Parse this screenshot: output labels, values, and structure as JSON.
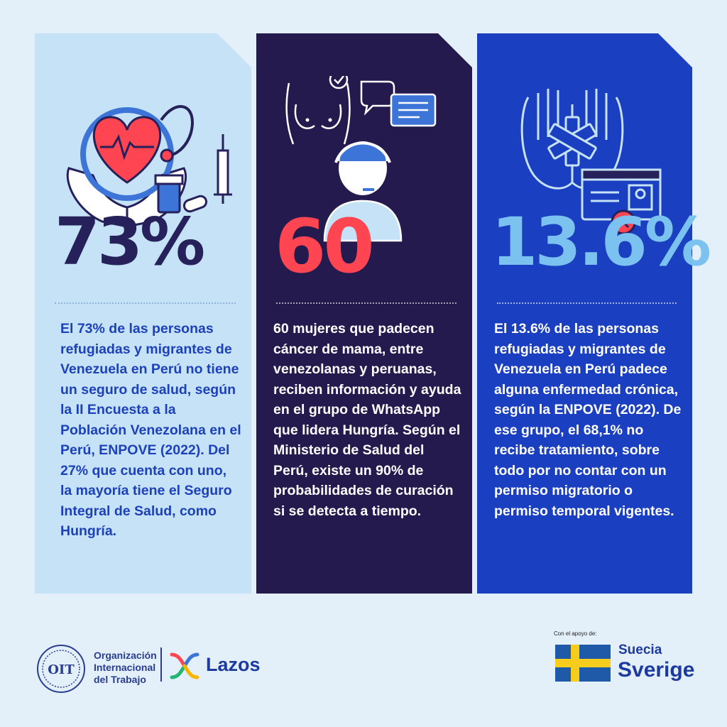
{
  "cards": [
    {
      "stat": "73%",
      "text": "El 73% de las personas refugiadas y migrantes de Venezuela en Perú no tiene un seguro de salud, según la II Encuesta a la Población Venezolana en el Perú, ENPOVE (2022). Del 27% que cuenta con uno, la mayoría tiene el Seguro Integral de Salud, como Hungría.",
      "icon": "heart-stethoscope-hands-icon"
    },
    {
      "stat": "60",
      "text": "60 mujeres que padecen cáncer de mama, entre venezolanas y peruanas, reciben información y ayuda en el grupo de WhatsApp que lidera Hungría. Según el Ministerio de Salud del Perú, existe un 90% de probabilidades de curación si se detecta a tiempo.",
      "icon": "breast-exam-support-agent-icon"
    },
    {
      "stat": "13.6%",
      "text": "El 13.6% de las personas refugiadas y migrantes de Venezuela en Perú padece alguna enfermedad crónica, según la ENPOVE (2022). De ese grupo, el 68,1% no recibe tratamiento, sobre todo por no contar con un permiso migratorio o permiso temporal vigentes.",
      "icon": "medical-hands-id-card-icon"
    }
  ],
  "footer": {
    "oit_lines": [
      "Organización",
      "Internacional",
      "del Trabajo"
    ],
    "oit_emblem_text": "OIT",
    "lazos": "Lazos",
    "support_label": "Con el apoyo de:",
    "sweden_es": "Suecia",
    "sweden_sv": "Sverige"
  },
  "colors": {
    "background": "#e3f0f9",
    "card1": "#c6e2f7",
    "card2": "#251a4d",
    "card3": "#1a3fc0",
    "stat1": "#26215a",
    "stat2": "#ff4552",
    "stat3": "#7cc2f0"
  }
}
